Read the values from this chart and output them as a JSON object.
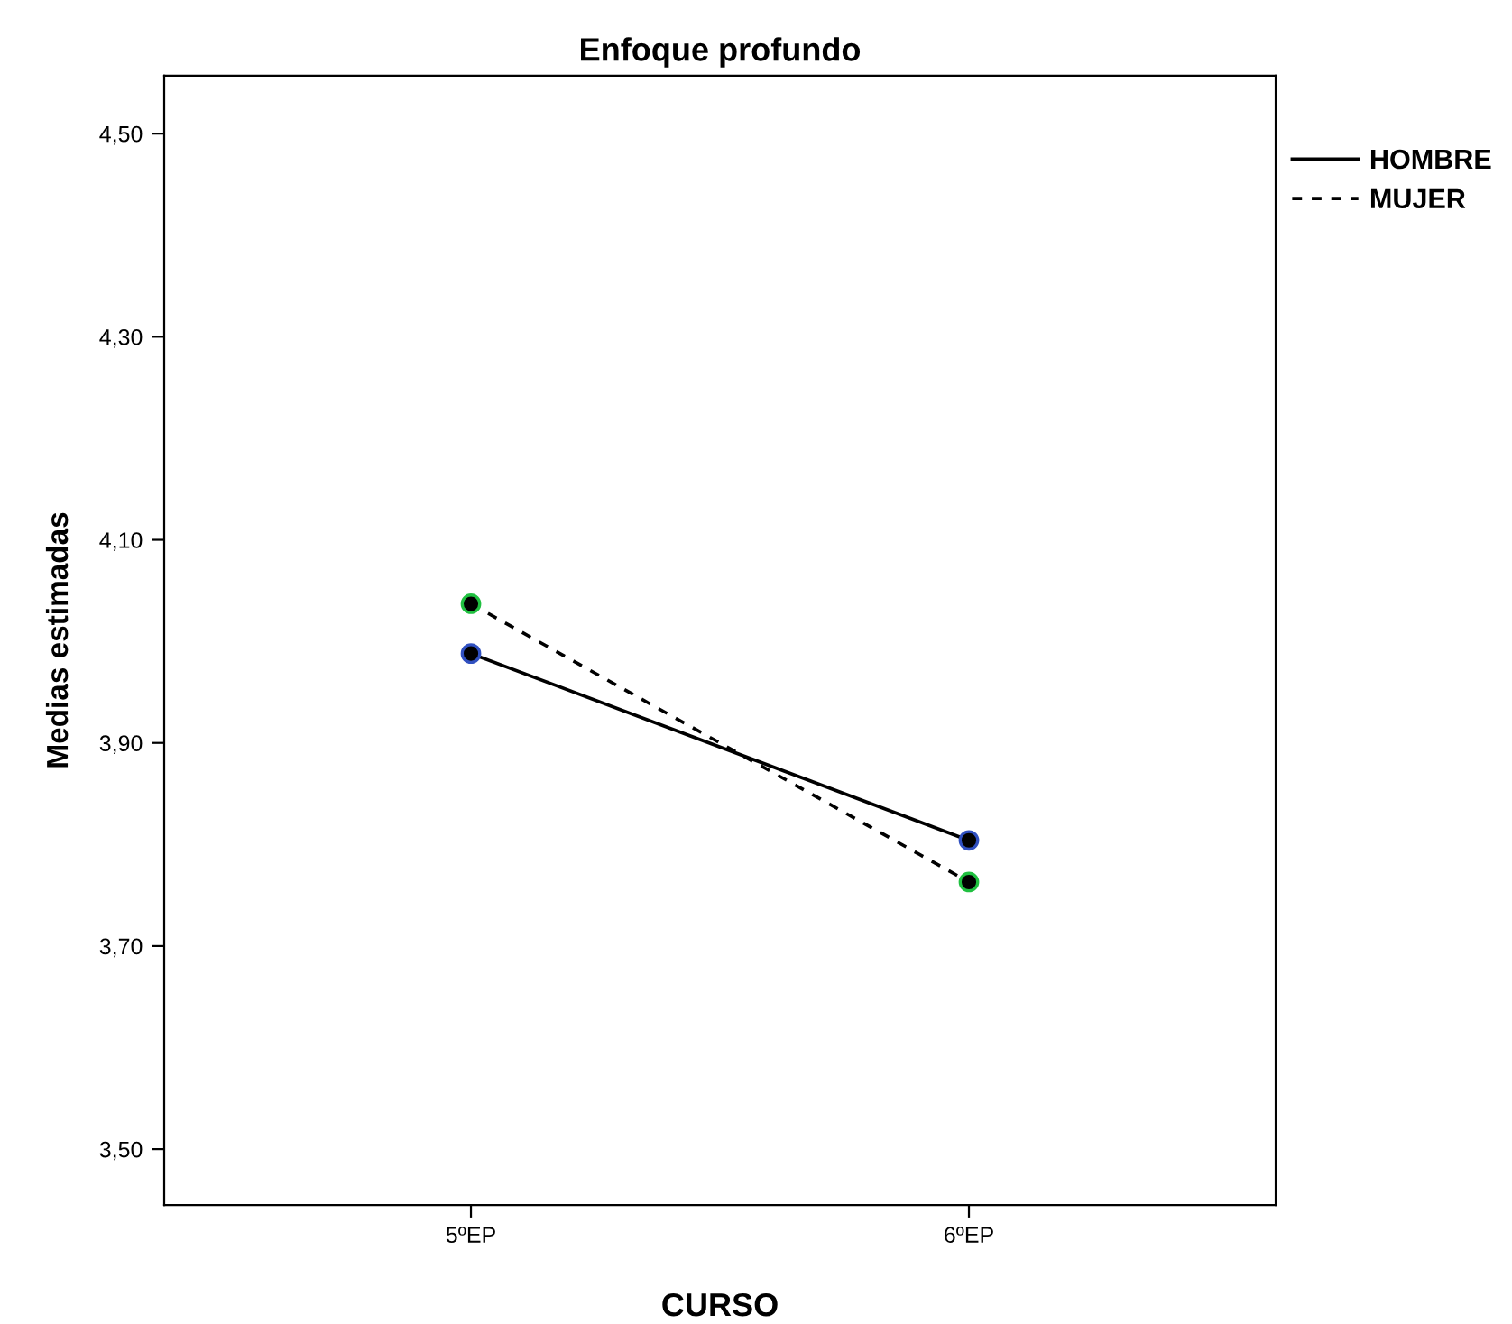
{
  "chart_data": {
    "type": "line",
    "title": "Enfoque profundo",
    "xlabel": "CURSO",
    "ylabel": "Medias estimadas",
    "categories": [
      "5ºEP",
      "6ºEP"
    ],
    "series": [
      {
        "name": "HOMBRE",
        "color": "#000000",
        "line_style": "solid",
        "values": [
          3.988,
          3.804
        ]
      },
      {
        "name": "MUJER",
        "color": "#000000",
        "line_style": "dashed",
        "values": [
          4.037,
          3.763
        ]
      }
    ],
    "marker": "circle",
    "ylim": [
      3.445,
      4.557
    ],
    "yticks": [
      {
        "value": 3.5,
        "label": "3,50"
      },
      {
        "value": 3.7,
        "label": "3,70"
      },
      {
        "value": 3.9,
        "label": "3,90"
      },
      {
        "value": 4.1,
        "label": "4,10"
      },
      {
        "value": 4.3,
        "label": "4,30"
      },
      {
        "value": 4.5,
        "label": "4,50"
      }
    ],
    "grid": false,
    "legend": "top right"
  }
}
